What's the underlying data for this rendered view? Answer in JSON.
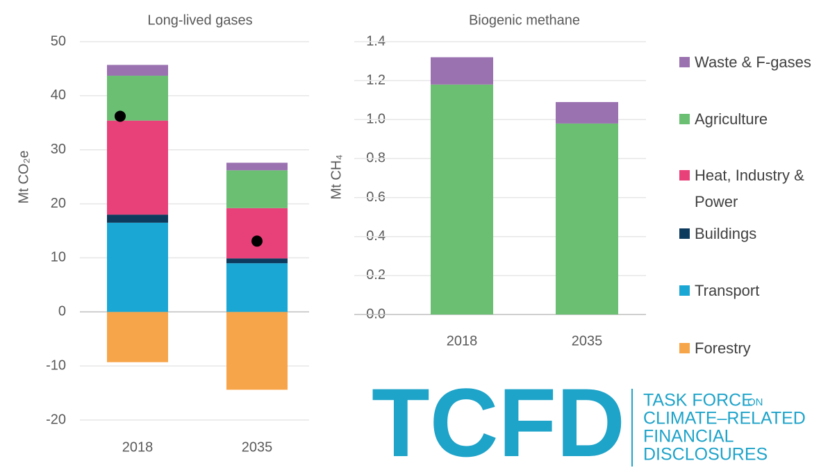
{
  "chart_data": [
    {
      "type": "stacked_bar",
      "title": "Long-lived gases",
      "y_label": "Mt CO₂e",
      "categories": [
        "2018",
        "2035"
      ],
      "ylim": [
        -20,
        50
      ],
      "yticks": [
        -20,
        -10,
        0,
        10,
        20,
        30,
        40,
        50
      ],
      "grid": true,
      "series": [
        {
          "name": "Waste & F-gases",
          "color": "#9b72b0",
          "values": [
            2,
            1.4
          ]
        },
        {
          "name": "Agriculture",
          "color": "#6abf73",
          "values": [
            8.3,
            7
          ]
        },
        {
          "name": "Heat, Industry & Power",
          "color": "#e8417a",
          "values": [
            17.4,
            9.3
          ]
        },
        {
          "name": "Buildings",
          "color": "#0d3b5e",
          "values": [
            1.5,
            0.9
          ]
        },
        {
          "name": "Transport",
          "color": "#1aa7d4",
          "values": [
            16.5,
            9
          ]
        },
        {
          "name": "Forestry",
          "color": "#f7a54a",
          "values": [
            -9.3,
            -14.4
          ]
        }
      ],
      "points": {
        "color": "#000000",
        "values": [
          36.2,
          13.1
        ]
      }
    },
    {
      "type": "stacked_bar",
      "title": "Biogenic methane",
      "y_label": "Mt CH₄",
      "categories": [
        "2018",
        "2035"
      ],
      "ylim": [
        0,
        1.4
      ],
      "yticks": [
        {
          "value": 0,
          "label": "0.0"
        },
        0.2,
        0.4,
        0.6,
        0.8,
        {
          "value": 1,
          "label": "1.0"
        },
        1.2,
        1.4
      ],
      "grid": true,
      "series": [
        {
          "name": "Waste & F-gases",
          "color": "#9b72b0",
          "values": [
            0.14,
            0.11
          ]
        },
        {
          "name": "Agriculture",
          "color": "#6abf73",
          "values": [
            1.18,
            0.98
          ]
        }
      ]
    }
  ],
  "logo": {
    "mark": "TCFD",
    "line1": "TASK FORCE",
    "line1_small": "ON",
    "line2": "CLIMATE–RELATED",
    "line3": "FINANCIAL",
    "line4": "DISCLOSURES"
  }
}
